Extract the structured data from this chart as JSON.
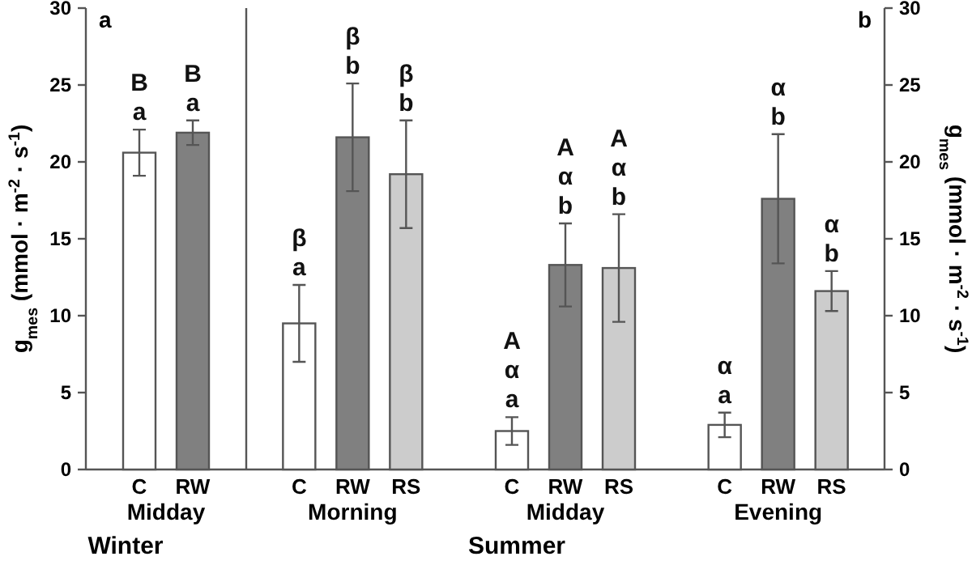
{
  "chart_data": [
    {
      "type": "bar",
      "title": "a",
      "xlabel": "Winter",
      "ylabel": "g$_{mes}$ (mmol · m$^{-2}$ · s$^{-1}$)",
      "categories": [
        "Midday"
      ],
      "ylim": [
        0,
        30
      ],
      "yticks": [
        0,
        5,
        10,
        15,
        20,
        25,
        30
      ],
      "series": [
        {
          "name": "C",
          "color": "#ffffff",
          "values": [
            20.6
          ],
          "errors": [
            1.5
          ],
          "value_labels": [
            "B\na"
          ]
        },
        {
          "name": "RW",
          "color": "#808080",
          "values": [
            21.9
          ],
          "errors": [
            0.8
          ],
          "value_labels": [
            "B\na"
          ]
        }
      ]
    },
    {
      "type": "bar",
      "title": "b",
      "xlabel": "Summer",
      "y2label": "g$_{mes}$ (mmol · m$^{-2}$ · s$^{-1}$)",
      "categories": [
        "Morning",
        "Midday",
        "Evening"
      ],
      "y2lim": [
        0,
        30
      ],
      "y2ticks": [
        0,
        5,
        10,
        15,
        20,
        25,
        30
      ],
      "series": [
        {
          "name": "C",
          "color": "#ffffff",
          "axis": "y2",
          "values": [
            9.5,
            2.5,
            2.9
          ],
          "errors": [
            2.5,
            0.9,
            0.8
          ],
          "value_labels": [
            "β\na",
            "A\nα\na",
            "α\na"
          ]
        },
        {
          "name": "RW",
          "color": "#808080",
          "axis": "y2",
          "values": [
            21.6,
            13.3,
            17.6
          ],
          "errors": [
            3.5,
            2.7,
            4.2
          ],
          "value_labels": [
            "β\nb",
            "A\nα\nb",
            "α\nb"
          ]
        },
        {
          "name": "RS",
          "color": "#cccccc",
          "axis": "y2",
          "values": [
            19.2,
            13.1,
            11.6
          ],
          "errors": [
            3.5,
            3.5,
            1.3
          ],
          "value_labels": [
            "β\nb",
            "A\nα\nb",
            "α\nb"
          ]
        }
      ]
    }
  ]
}
